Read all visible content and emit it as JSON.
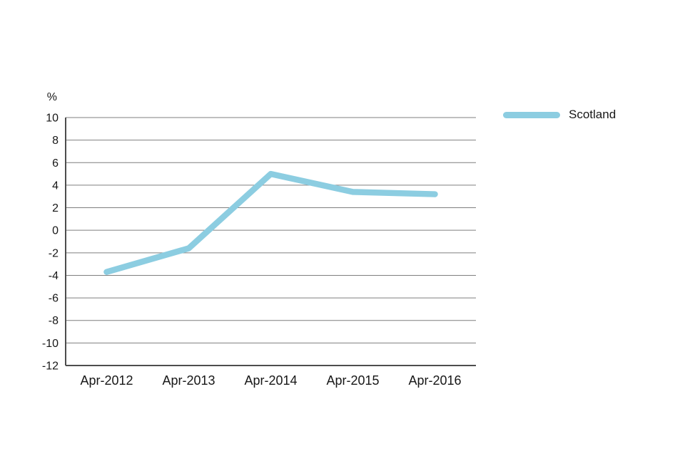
{
  "chart_data": {
    "type": "line",
    "title": "",
    "xlabel": "",
    "ylabel": "%",
    "categories": [
      "Apr-2012",
      "Apr-2013",
      "Apr-2014",
      "Apr-2015",
      "Apr-2016"
    ],
    "series": [
      {
        "name": "Scotland",
        "values": [
          -3.7,
          -1.6,
          5.0,
          3.4,
          3.2
        ],
        "color": "#8CCDE1"
      }
    ],
    "ylim": [
      -12,
      10
    ],
    "yticks": [
      10,
      8,
      6,
      4,
      2,
      0,
      -2,
      -4,
      -6,
      -8,
      -10,
      -12
    ],
    "grid": true,
    "legend_position": "right",
    "colors": {
      "grid": "#7f7f7f",
      "axis": "#4d4d4d",
      "text": "#171717",
      "background": "#ffffff"
    }
  }
}
